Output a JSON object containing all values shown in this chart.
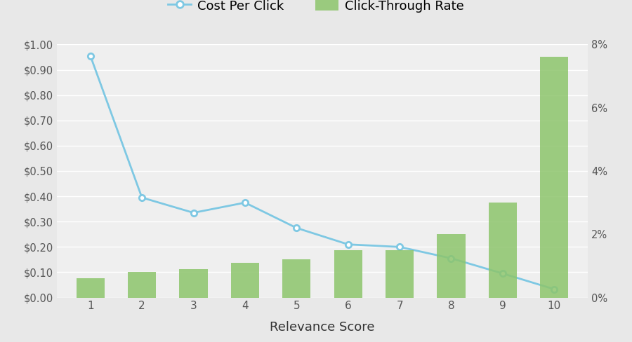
{
  "relevance_scores": [
    1,
    2,
    3,
    4,
    5,
    6,
    7,
    8,
    9,
    10
  ],
  "cpc_values": [
    0.955,
    0.395,
    0.335,
    0.375,
    0.275,
    0.21,
    0.2,
    0.155,
    0.095,
    0.033
  ],
  "ctr_values": [
    0.006,
    0.008,
    0.009,
    0.011,
    0.012,
    0.015,
    0.015,
    0.02,
    0.03,
    0.076
  ],
  "bar_color": "#8DC56C",
  "line_color": "#7EC8E3",
  "background_color": "#E8E8E8",
  "plot_bg_color": "#EFEFEF",
  "grid_color": "#FFFFFF",
  "xlabel": "Relevance Score",
  "cpc_label": "Cost Per Click",
  "ctr_label": "Click-Through Rate",
  "left_ylim": [
    0,
    1.0
  ],
  "right_ylim": [
    0,
    0.08
  ],
  "left_yticks": [
    0.0,
    0.1,
    0.2,
    0.3,
    0.4,
    0.5,
    0.6,
    0.7,
    0.8,
    0.9,
    1.0
  ],
  "right_yticks": [
    0.0,
    0.02,
    0.04,
    0.06,
    0.08
  ],
  "figsize": [
    9.0,
    4.88
  ],
  "dpi": 100
}
